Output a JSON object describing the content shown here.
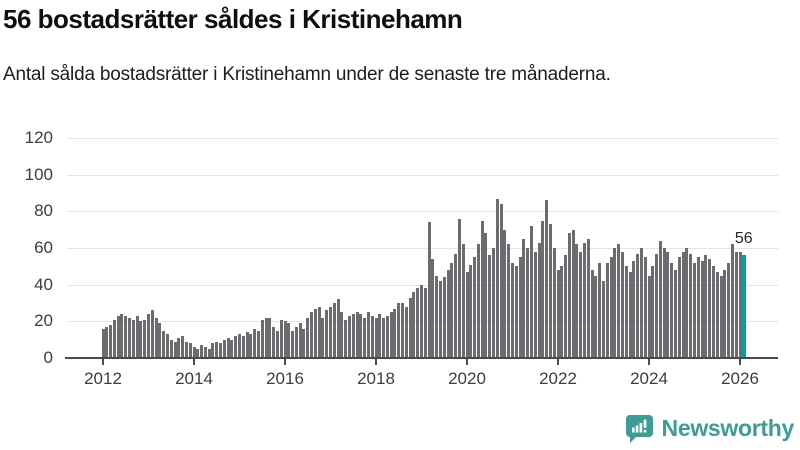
{
  "title": "56 bostadsrätter såldes i Kristinehamn",
  "subtitle": "Antal sålda bostadsrätter i Kristinehamn under de senaste tre månaderna.",
  "branding": {
    "name": "Newsworthy",
    "brand_color": "#3a9e96"
  },
  "chart_data": {
    "type": "bar",
    "title": "56 bostadsrätter såldes i Kristinehamn",
    "subtitle": "Antal sålda bostadsrätter i Kristinehamn under de senaste tre månaderna.",
    "unit": "sålda bostadsrätter per rullande tremånadersperiod",
    "x_start": "2012-01",
    "x_end": "2026-02",
    "x_tick_years": [
      2012,
      2014,
      2016,
      2018,
      2020,
      2022,
      2024,
      2026
    ],
    "y_ticks": [
      0,
      20,
      40,
      60,
      80,
      100,
      120
    ],
    "ylim": [
      0,
      120
    ],
    "grid": "horizontal",
    "bar_color": "#6d6b70",
    "highlight_color": "#00a2a4",
    "highlight_last_bar": true,
    "highlight_value_label": "56",
    "values": [
      16,
      17,
      18,
      21,
      23,
      24,
      23,
      22,
      21,
      23,
      20,
      21,
      24,
      26,
      22,
      19,
      15,
      13,
      10,
      9,
      11,
      12,
      9,
      8,
      6,
      5,
      7,
      6,
      5,
      8,
      9,
      8,
      10,
      11,
      10,
      12,
      13,
      12,
      14,
      13,
      16,
      15,
      21,
      22,
      22,
      17,
      15,
      21,
      20,
      19,
      15,
      17,
      19,
      16,
      22,
      25,
      27,
      28,
      22,
      26,
      28,
      30,
      32,
      25,
      21,
      23,
      24,
      25,
      24,
      22,
      25,
      23,
      22,
      24,
      22,
      23,
      25,
      27,
      30,
      30,
      28,
      33,
      36,
      38,
      40,
      38,
      74,
      54,
      45,
      42,
      44,
      48,
      52,
      57,
      76,
      62,
      47,
      51,
      55,
      62,
      75,
      68,
      56,
      60,
      87,
      84,
      70,
      62,
      52,
      50,
      55,
      65,
      60,
      72,
      58,
      63,
      75,
      86,
      73,
      60,
      48,
      50,
      56,
      68,
      70,
      62,
      58,
      63,
      65,
      48,
      45,
      52,
      42,
      52,
      55,
      60,
      62,
      58,
      50,
      47,
      53,
      57,
      60,
      55,
      45,
      50,
      57,
      64,
      60,
      58,
      52,
      48,
      55,
      58,
      60,
      57,
      52,
      55,
      53,
      56,
      54,
      50,
      47,
      45,
      48,
      52,
      62,
      58,
      58,
      56
    ]
  }
}
